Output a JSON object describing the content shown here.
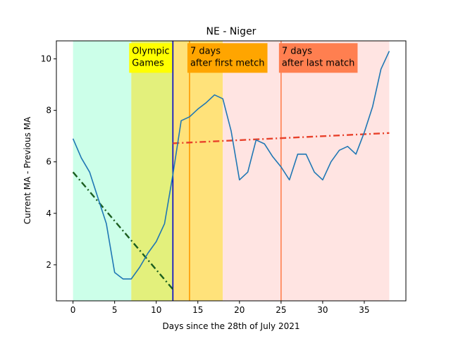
{
  "chart_data": {
    "type": "line",
    "title": "NE - Niger",
    "xlabel": "Days since the 28th of July 2021",
    "ylabel": "Current MA - Previous MA",
    "xlim": [
      -2,
      40
    ],
    "ylim": [
      0.6,
      10.7
    ],
    "x_ticks": [
      0,
      5,
      10,
      15,
      20,
      25,
      30,
      35
    ],
    "y_ticks": [
      2,
      4,
      6,
      8,
      10
    ],
    "grid": false,
    "bands": [
      {
        "x0": 0,
        "x1": 7,
        "color": "#ccffe9"
      },
      {
        "x0": 7,
        "x1": 12,
        "color": "#e3f07c"
      },
      {
        "x0": 12,
        "x1": 18,
        "color": "#ffe27a"
      },
      {
        "x0": 18,
        "x1": 38,
        "color": "#ffe4e2"
      }
    ],
    "vlines": [
      {
        "x": 12,
        "color": "#0000cc"
      },
      {
        "x": 14,
        "color": "#ff9900"
      },
      {
        "x": 25,
        "color": "#ff7f50"
      }
    ],
    "annotations": [
      {
        "text": [
          "Olympic",
          "Games"
        ],
        "x": 7,
        "y": 10.5,
        "bg": "#ffff00"
      },
      {
        "text": [
          "7 days",
          "after first metch"
        ],
        "x": 14,
        "y": 10.5,
        "bg": "#ffa500"
      },
      {
        "text": [
          "7 days",
          "after last match"
        ],
        "x": 25,
        "y": 10.5,
        "bg": "#ff7f50"
      }
    ],
    "series": [
      {
        "color": "#1f77b4",
        "x": [
          0,
          1,
          2,
          3,
          4,
          5,
          6,
          7,
          8,
          9,
          10,
          11,
          12,
          13,
          14,
          15,
          16,
          17,
          18,
          19,
          20,
          21,
          22,
          23,
          24,
          25,
          26,
          27,
          28,
          29,
          30,
          31,
          32,
          33,
          34,
          35,
          36,
          37,
          38
        ],
        "y": [
          6.9,
          6.15,
          5.6,
          4.6,
          3.6,
          1.7,
          1.45,
          1.45,
          1.9,
          2.45,
          2.9,
          3.6,
          5.5,
          7.6,
          7.75,
          8.05,
          8.3,
          8.6,
          8.45,
          7.2,
          5.3,
          5.6,
          6.85,
          6.7,
          6.2,
          5.8,
          5.3,
          6.3,
          6.3,
          5.6,
          5.3,
          6.0,
          6.45,
          6.6,
          6.3,
          7.15,
          8.15,
          9.6,
          10.3
        ]
      }
    ],
    "trend_lines": [
      {
        "x": [
          0,
          12
        ],
        "y": [
          5.6,
          1.05
        ],
        "color": "#1b5e20"
      },
      {
        "x": [
          12,
          38
        ],
        "y": [
          6.72,
          7.12
        ],
        "color": "#e8412b"
      }
    ]
  }
}
